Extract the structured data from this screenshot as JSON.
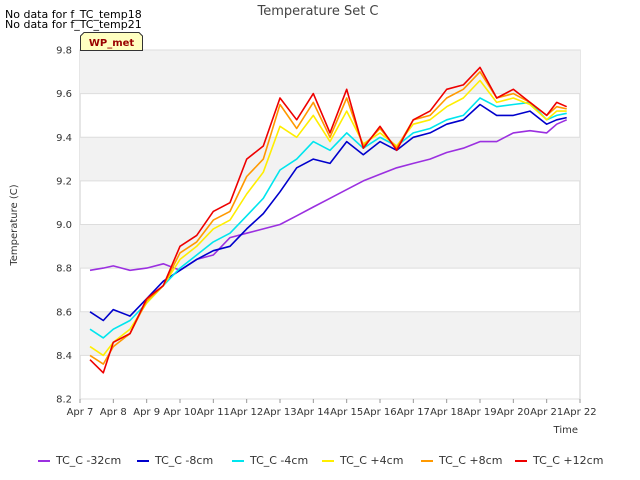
{
  "notes": [
    "No data for f_TC_temp18",
    "No data for f_TC_temp21"
  ],
  "badge": "WP_met",
  "chart_data": {
    "type": "line",
    "title": "Temperature Set C",
    "xlabel": "Time",
    "ylabel": "Temperature (C)",
    "ylim": [
      8.2,
      9.8
    ],
    "yticks": [
      8.2,
      8.4,
      8.6,
      8.8,
      9.0,
      9.2,
      9.4,
      9.6,
      9.8
    ],
    "xlim": [
      0,
      15
    ],
    "xticks": [
      "Apr 7",
      "Apr 8",
      "Apr 9",
      "Apr 10",
      "Apr 11",
      "Apr 12",
      "Apr 13",
      "Apr 14",
      "Apr 15",
      "Apr 16",
      "Apr 17",
      "Apr 18",
      "Apr 19",
      "Apr 20",
      "Apr 21",
      "Apr 22"
    ],
    "x": [
      0.3,
      0.7,
      1.0,
      1.5,
      2.0,
      2.5,
      3.0,
      3.5,
      4.0,
      4.5,
      5.0,
      5.5,
      6.0,
      6.5,
      7.0,
      7.5,
      8.0,
      8.5,
      9.0,
      9.5,
      10.0,
      10.5,
      11.0,
      11.5,
      12.0,
      12.5,
      13.0,
      13.5,
      14.0,
      14.3,
      14.6
    ],
    "series": [
      {
        "name": "TC_C -32cm",
        "color": "#9b30e0",
        "values": [
          8.79,
          8.8,
          8.81,
          8.79,
          8.8,
          8.82,
          8.79,
          8.84,
          8.86,
          8.94,
          8.96,
          8.98,
          9.0,
          9.04,
          9.08,
          9.12,
          9.16,
          9.2,
          9.23,
          9.26,
          9.28,
          9.3,
          9.33,
          9.35,
          9.38,
          9.38,
          9.42,
          9.43,
          9.42,
          9.46,
          9.48
        ]
      },
      {
        "name": "TC_C -8cm",
        "color": "#0000cc",
        "values": [
          8.6,
          8.56,
          8.61,
          8.58,
          8.66,
          8.74,
          8.79,
          8.84,
          8.88,
          8.9,
          8.98,
          9.05,
          9.15,
          9.26,
          9.3,
          9.28,
          9.38,
          9.32,
          9.38,
          9.34,
          9.4,
          9.42,
          9.46,
          9.48,
          9.55,
          9.5,
          9.5,
          9.52,
          9.46,
          9.48,
          9.49
        ]
      },
      {
        "name": "TC_C -4cm",
        "color": "#00e5ee",
        "values": [
          8.52,
          8.48,
          8.52,
          8.56,
          8.64,
          8.72,
          8.8,
          8.86,
          8.92,
          8.96,
          9.04,
          9.12,
          9.25,
          9.3,
          9.38,
          9.34,
          9.42,
          9.35,
          9.4,
          9.36,
          9.42,
          9.44,
          9.48,
          9.5,
          9.58,
          9.54,
          9.55,
          9.56,
          9.48,
          9.5,
          9.51
        ]
      },
      {
        "name": "TC_C +4cm",
        "color": "#ffee00",
        "values": [
          8.44,
          8.4,
          8.46,
          8.52,
          8.64,
          8.72,
          8.84,
          8.9,
          8.98,
          9.02,
          9.14,
          9.24,
          9.45,
          9.4,
          9.5,
          9.38,
          9.52,
          9.37,
          9.42,
          9.36,
          9.46,
          9.48,
          9.54,
          9.58,
          9.66,
          9.56,
          9.58,
          9.55,
          9.48,
          9.52,
          9.52
        ]
      },
      {
        "name": "TC_C +8cm",
        "color": "#ff9900",
        "values": [
          8.4,
          8.36,
          8.44,
          8.5,
          8.65,
          8.72,
          8.87,
          8.92,
          9.02,
          9.06,
          9.22,
          9.3,
          9.55,
          9.44,
          9.56,
          9.4,
          9.58,
          9.36,
          9.44,
          9.35,
          9.48,
          9.5,
          9.58,
          9.62,
          9.7,
          9.58,
          9.6,
          9.56,
          9.5,
          9.54,
          9.53
        ]
      },
      {
        "name": "TC_C +12cm",
        "color": "#ee0000",
        "values": [
          8.38,
          8.32,
          8.46,
          8.5,
          8.66,
          8.72,
          8.9,
          8.95,
          9.06,
          9.1,
          9.3,
          9.36,
          9.58,
          9.48,
          9.6,
          9.42,
          9.62,
          9.35,
          9.45,
          9.34,
          9.48,
          9.52,
          9.62,
          9.64,
          9.72,
          9.58,
          9.62,
          9.56,
          9.5,
          9.56,
          9.54
        ]
      }
    ]
  }
}
